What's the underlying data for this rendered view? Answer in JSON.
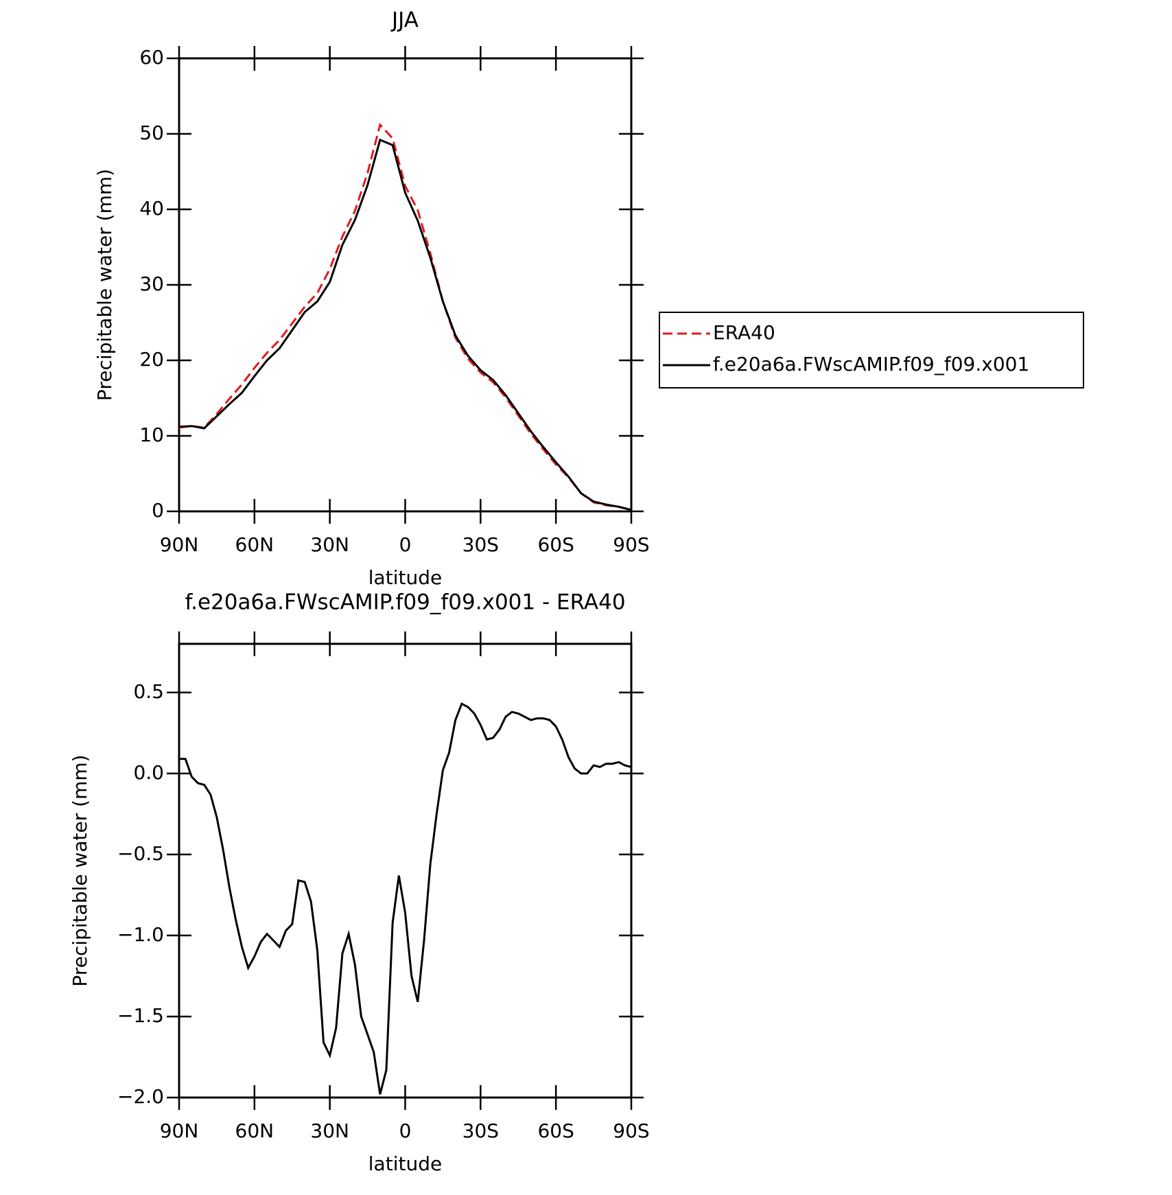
{
  "chart_data": [
    {
      "type": "line",
      "title": "JJA",
      "xlabel": "latitude",
      "ylabel": "Precipitable water (mm)",
      "x": [
        90,
        85,
        80,
        75,
        70,
        65,
        60,
        55,
        50,
        45,
        40,
        35,
        30,
        25,
        20,
        15,
        10,
        5,
        0,
        -5,
        -10,
        -15,
        -20,
        -25,
        -30,
        -35,
        -40,
        -45,
        -50,
        -55,
        -60,
        -65,
        -70,
        -75,
        -80,
        -85,
        -90
      ],
      "series": [
        {
          "name": "ERA40",
          "color": "#e41a1c",
          "linestyle": "dashed",
          "values": [
            11.1,
            11.3,
            11.1,
            12.9,
            14.9,
            16.8,
            19.0,
            21.0,
            22.7,
            24.9,
            27.1,
            28.9,
            32.1,
            36.4,
            39.8,
            44.8,
            51.2,
            49.4,
            43.1,
            39.9,
            34.2,
            27.8,
            23.0,
            20.2,
            18.4,
            17.1,
            15.1,
            12.7,
            10.3,
            8.2,
            6.2,
            4.5,
            2.4,
            1.2,
            0.8,
            0.6,
            0.2
          ]
        },
        {
          "name": "f.e20a6a.FWscAMIP.f09_f09.x001",
          "color": "#000000",
          "linestyle": "solid",
          "values": [
            11.2,
            11.3,
            11.0,
            12.6,
            14.2,
            15.7,
            17.9,
            20.0,
            21.6,
            24.0,
            26.4,
            27.8,
            30.4,
            35.3,
            38.6,
            43.2,
            49.2,
            48.5,
            42.2,
            38.5,
            33.6,
            27.8,
            23.3,
            20.6,
            18.7,
            17.4,
            15.4,
            13.0,
            10.6,
            8.5,
            6.5,
            4.6,
            2.4,
            1.3,
            0.9,
            0.6,
            0.2
          ]
        }
      ],
      "xlim": [
        90,
        -90
      ],
      "xticks": [
        {
          "value": 90,
          "label": "90N"
        },
        {
          "value": 60,
          "label": "60N"
        },
        {
          "value": 30,
          "label": "30N"
        },
        0,
        {
          "value": -30,
          "label": "30S"
        },
        {
          "value": -60,
          "label": "60S"
        },
        {
          "value": -90,
          "label": "90S"
        }
      ],
      "ylim": [
        0,
        60
      ],
      "yticks": [
        0,
        10,
        20,
        30,
        40,
        50,
        60
      ],
      "legend": "right"
    },
    {
      "type": "line",
      "title": "f.e20a6a.FWscAMIP.f09_f09.x001 - ERA40",
      "xlabel": "latitude",
      "ylabel": "Precipitable water (mm)",
      "x": [
        90,
        87.5,
        85,
        82.5,
        80,
        77.5,
        75,
        72.5,
        70,
        67.5,
        65,
        62.5,
        60,
        57.5,
        55,
        52.5,
        50,
        47.5,
        45,
        42.5,
        40,
        37.5,
        35,
        32.5,
        30,
        27.5,
        25,
        22.5,
        20,
        17.5,
        15,
        12.5,
        10,
        7.5,
        5,
        2.5,
        0,
        -2.5,
        -5,
        -7.5,
        -10,
        -12.5,
        -15,
        -17.5,
        -20,
        -22.5,
        -25,
        -27.5,
        -30,
        -32.5,
        -35,
        -37.5,
        -40,
        -42.5,
        -45,
        -47.5,
        -50,
        -52.5,
        -55,
        -57.5,
        -60,
        -62.5,
        -65,
        -67.5,
        -70,
        -72.5,
        -75,
        -77.5,
        -80,
        -82.5,
        -85,
        -87.5,
        -90
      ],
      "series": [
        {
          "name": "f.e20a6a.FWscAMIP.f09_f09.x001 - ERA40",
          "color": "#000000",
          "linestyle": "solid",
          "values": [
            0.09,
            0.09,
            -0.02,
            -0.06,
            -0.07,
            -0.13,
            -0.27,
            -0.47,
            -0.7,
            -0.9,
            -1.07,
            -1.2,
            -1.13,
            -1.04,
            -0.99,
            -1.03,
            -1.07,
            -0.97,
            -0.93,
            -0.66,
            -0.67,
            -0.79,
            -1.09,
            -1.66,
            -1.74,
            -1.57,
            -1.11,
            -0.99,
            -1.18,
            -1.5,
            -1.61,
            -1.72,
            -1.98,
            -1.83,
            -0.92,
            -0.63,
            -0.86,
            -1.25,
            -1.41,
            -1.03,
            -0.56,
            -0.25,
            0.02,
            0.13,
            0.33,
            0.43,
            0.41,
            0.37,
            0.3,
            0.21,
            0.22,
            0.27,
            0.35,
            0.38,
            0.37,
            0.35,
            0.33,
            0.34,
            0.34,
            0.33,
            0.29,
            0.21,
            0.1,
            0.03,
            0.0,
            0.0,
            0.05,
            0.04,
            0.06,
            0.06,
            0.07,
            0.05,
            0.04
          ]
        }
      ],
      "xlim": [
        90,
        -90
      ],
      "xticks": [
        {
          "value": 90,
          "label": "90N"
        },
        {
          "value": 60,
          "label": "60N"
        },
        {
          "value": 30,
          "label": "30N"
        },
        0,
        {
          "value": -30,
          "label": "30S"
        },
        {
          "value": -60,
          "label": "60S"
        },
        {
          "value": -90,
          "label": "90S"
        }
      ],
      "ylim": [
        -2,
        0.8
      ],
      "yticks": [
        {
          "value": -2,
          "label": "−2.0"
        },
        {
          "value": -1.5,
          "label": "−1.5"
        },
        {
          "value": -1,
          "label": "−1.0"
        },
        {
          "value": -0.5,
          "label": "−0.5"
        },
        {
          "value": 0,
          "label": "0.0"
        },
        0.5
      ]
    }
  ]
}
